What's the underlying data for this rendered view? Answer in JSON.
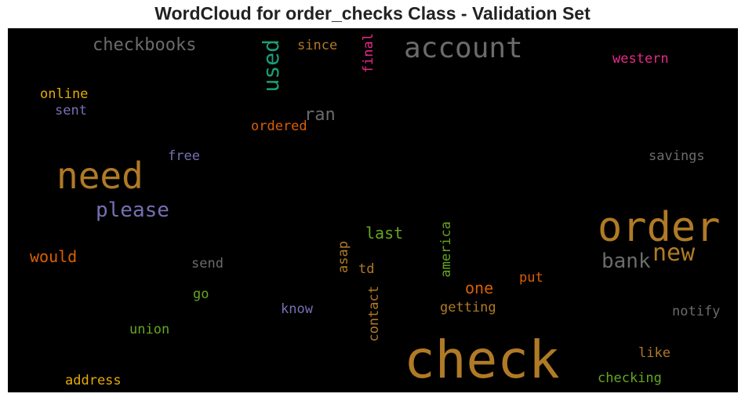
{
  "chart_data": {
    "type": "wordcloud",
    "title": "WordCloud for order_checks Class - Validation Set",
    "words": [
      {
        "text": "check",
        "color": "#b07a26"
      },
      {
        "text": "order",
        "color": "#b07a26"
      },
      {
        "text": "need",
        "color": "#b07a26"
      },
      {
        "text": "account",
        "color": "#6b6b6b"
      },
      {
        "text": "please",
        "color": "#7570b3"
      },
      {
        "text": "new",
        "color": "#b07a26"
      },
      {
        "text": "bank",
        "color": "#6b6b6b"
      },
      {
        "text": "used",
        "color": "#1b9e77"
      },
      {
        "text": "checkbooks",
        "color": "#6b6b6b"
      },
      {
        "text": "ran",
        "color": "#6b6b6b"
      },
      {
        "text": "would",
        "color": "#d95f02"
      },
      {
        "text": "last",
        "color": "#66a61e"
      },
      {
        "text": "one",
        "color": "#d95f02"
      },
      {
        "text": "final",
        "color": "#e7298a"
      },
      {
        "text": "western",
        "color": "#e7298a"
      },
      {
        "text": "since",
        "color": "#b07a26"
      },
      {
        "text": "online",
        "color": "#e6ab02"
      },
      {
        "text": "sent",
        "color": "#7570b3"
      },
      {
        "text": "ordered",
        "color": "#d95f02"
      },
      {
        "text": "free",
        "color": "#7570b3"
      },
      {
        "text": "savings",
        "color": "#6b6b6b"
      },
      {
        "text": "send",
        "color": "#6b6b6b"
      },
      {
        "text": "asap",
        "color": "#b07a26"
      },
      {
        "text": "td",
        "color": "#b07a26"
      },
      {
        "text": "america",
        "color": "#66a61e"
      },
      {
        "text": "put",
        "color": "#d95f02"
      },
      {
        "text": "go",
        "color": "#66a61e"
      },
      {
        "text": "know",
        "color": "#7570b3"
      },
      {
        "text": "contact",
        "color": "#b07a26"
      },
      {
        "text": "getting",
        "color": "#b07a26"
      },
      {
        "text": "notify",
        "color": "#6b6b6b"
      },
      {
        "text": "union",
        "color": "#66a61e"
      },
      {
        "text": "like",
        "color": "#b07a26"
      },
      {
        "text": "address",
        "color": "#e6ab02"
      },
      {
        "text": "checking",
        "color": "#66a61e"
      }
    ]
  }
}
